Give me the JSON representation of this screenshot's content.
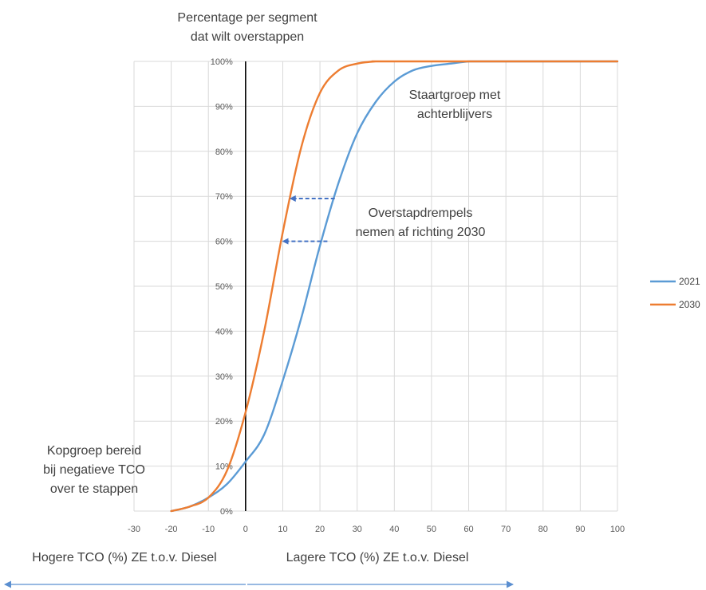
{
  "chart_data": {
    "type": "line",
    "title_lines": [
      "Percentage per segment",
      "dat wilt overstappen"
    ],
    "xlim": [
      -30,
      100
    ],
    "ylim": [
      0,
      1
    ],
    "x_ticks": [
      "-30",
      "-20",
      "-10",
      "0",
      "10",
      "20",
      "30",
      "40",
      "50",
      "60",
      "70",
      "80",
      "90",
      "100"
    ],
    "y_ticks": [
      "0%",
      "10%",
      "20%",
      "30%",
      "40%",
      "50%",
      "60%",
      "70%",
      "80%",
      "90%",
      "100%"
    ],
    "grid": true,
    "legend_position": "right",
    "series": [
      {
        "name": "2021",
        "color": "#5B9BD5",
        "x": [
          -20,
          -15,
          -10,
          -5,
          0,
          5,
          10,
          15,
          20,
          25,
          30,
          35,
          40,
          45,
          50,
          55,
          60,
          65,
          70,
          100
        ],
        "y": [
          0,
          0.01,
          0.03,
          0.06,
          0.11,
          0.17,
          0.29,
          0.43,
          0.59,
          0.73,
          0.84,
          0.91,
          0.955,
          0.98,
          0.99,
          0.995,
          1.0,
          1.0,
          1.0,
          1.0
        ]
      },
      {
        "name": "2030",
        "color": "#ED7D31",
        "x": [
          -20,
          -15,
          -10,
          -5,
          0,
          5,
          10,
          15,
          20,
          25,
          30,
          35,
          40,
          100
        ],
        "y": [
          0,
          0.01,
          0.03,
          0.09,
          0.22,
          0.4,
          0.62,
          0.81,
          0.93,
          0.98,
          0.995,
          1.0,
          1.0,
          1.0
        ]
      }
    ],
    "zero_line": 0,
    "arrows": [
      {
        "from": [
          24,
          0.695
        ],
        "to": [
          12,
          0.695
        ]
      },
      {
        "from": [
          22,
          0.6
        ],
        "to": [
          10,
          0.6
        ]
      }
    ],
    "annotations": {
      "tail": [
        "Staartgroep met",
        "achterblijvers"
      ],
      "threshold": [
        "Overstapdrempels",
        "nemen af richting 2030"
      ],
      "lead": [
        "Kopgroep bereid",
        "bij negatieve TCO",
        "over te stappen"
      ]
    },
    "bottom_labels": {
      "left": "Hogere TCO (%) ZE t.o.v. Diesel",
      "right": "Lagere TCO (%) ZE t.o.v. Diesel"
    }
  },
  "colors": {
    "grid": "#d9d9d9",
    "zero_line": "#000000",
    "arrow": "#4472C4",
    "bottom_arrow": "#5B8FD0"
  }
}
